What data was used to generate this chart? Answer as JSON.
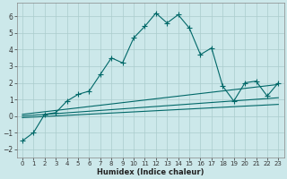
{
  "xlabel": "Humidex (Indice chaleur)",
  "bg_color": "#cce8ea",
  "grid_color": "#aacccc",
  "line_color": "#006868",
  "xlim": [
    -0.5,
    23.5
  ],
  "ylim": [
    -2.5,
    6.8
  ],
  "xticks": [
    0,
    1,
    2,
    3,
    4,
    5,
    6,
    7,
    8,
    9,
    10,
    11,
    12,
    13,
    14,
    15,
    16,
    17,
    18,
    19,
    20,
    21,
    22,
    23
  ],
  "yticks": [
    -2,
    -1,
    0,
    1,
    2,
    3,
    4,
    5,
    6
  ],
  "main_x": [
    0,
    1,
    2,
    3,
    4,
    5,
    6,
    7,
    8,
    9,
    10,
    11,
    12,
    13,
    14,
    15,
    16,
    17,
    18,
    19,
    20,
    21,
    22,
    23
  ],
  "main_y": [
    -1.5,
    -1.0,
    0.1,
    0.2,
    0.9,
    1.3,
    1.5,
    2.5,
    3.5,
    3.2,
    4.7,
    5.4,
    6.2,
    5.6,
    6.1,
    5.3,
    3.7,
    4.1,
    1.8,
    0.9,
    2.0,
    2.1,
    1.2,
    2.0
  ],
  "ref_lines": [
    {
      "x": [
        0,
        23
      ],
      "y": [
        -0.1,
        0.7
      ]
    },
    {
      "x": [
        0,
        23
      ],
      "y": [
        0.0,
        1.1
      ]
    },
    {
      "x": [
        0,
        23
      ],
      "y": [
        0.1,
        1.9
      ]
    }
  ],
  "marker_x": [
    0,
    1,
    2,
    3,
    4,
    5,
    6,
    7,
    8,
    9,
    10,
    11,
    12,
    13,
    14,
    15,
    16,
    17,
    18,
    19,
    20,
    21,
    22,
    23
  ],
  "marker_y": [
    -1.5,
    -1.0,
    0.1,
    0.2,
    0.9,
    1.3,
    1.5,
    2.5,
    3.5,
    3.2,
    4.7,
    5.4,
    6.2,
    5.6,
    6.1,
    5.3,
    3.7,
    4.1,
    1.8,
    0.9,
    2.0,
    2.1,
    1.2,
    2.0
  ],
  "xlabel_fontsize": 6,
  "tick_fontsize": 5,
  "linewidth": 0.8,
  "markersize": 2.5
}
